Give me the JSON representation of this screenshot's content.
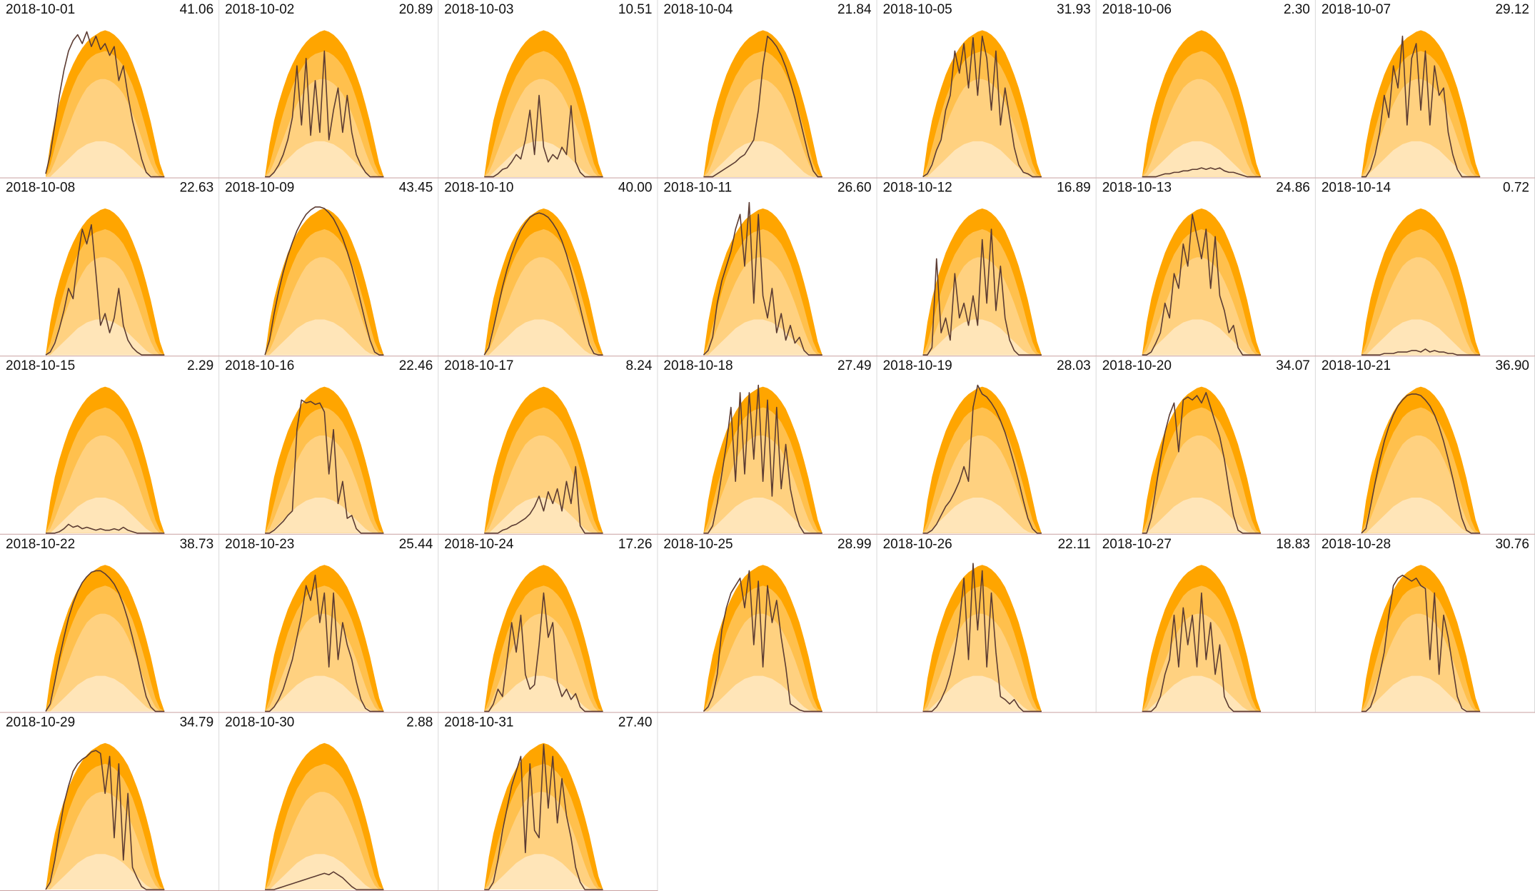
{
  "chart_data": {
    "type": "small-multiples",
    "x": [
      5,
      5.5,
      6,
      6.5,
      7,
      7.5,
      8,
      8.5,
      9,
      9.5,
      10,
      10.5,
      11,
      11.5,
      12,
      12.5,
      13,
      13.5,
      14,
      14.5,
      15,
      15.5,
      16,
      16.5,
      17,
      17.5,
      18
    ],
    "xlim": [
      0,
      24
    ],
    "ylim": [
      0,
      10.5
    ],
    "line_color": "#5b3b32",
    "bands": [
      {
        "color": "#ffa500",
        "values": [
          0,
          2.2,
          3.8,
          5.0,
          6.0,
          6.9,
          7.6,
          8.2,
          8.7,
          9.1,
          9.4,
          9.6,
          9.8,
          9.9,
          9.8,
          9.6,
          9.3,
          8.9,
          8.4,
          7.7,
          6.9,
          6.0,
          4.9,
          3.7,
          2.3,
          0.9,
          0
        ]
      },
      {
        "color": "#ffc04d",
        "values": [
          0,
          0.8,
          2.0,
          3.2,
          4.3,
          5.3,
          6.1,
          6.8,
          7.3,
          7.8,
          8.1,
          8.3,
          8.4,
          8.5,
          8.4,
          8.2,
          7.9,
          7.5,
          6.9,
          6.2,
          5.3,
          4.3,
          3.2,
          2.0,
          0.9,
          0.2,
          0
        ]
      },
      {
        "color": "#ffd180",
        "values": [
          0,
          0.3,
          1.0,
          1.8,
          2.6,
          3.4,
          4.2,
          4.9,
          5.5,
          6.0,
          6.3,
          6.5,
          6.6,
          6.6,
          6.5,
          6.3,
          6.0,
          5.6,
          5.0,
          4.3,
          3.5,
          2.6,
          1.7,
          0.9,
          0.3,
          0,
          0
        ]
      },
      {
        "color": "#ffe5b8",
        "values": [
          0,
          0,
          0.3,
          0.6,
          0.9,
          1.2,
          1.5,
          1.8,
          2.0,
          2.2,
          2.3,
          2.4,
          2.4,
          2.4,
          2.3,
          2.2,
          2.0,
          1.8,
          1.5,
          1.2,
          0.9,
          0.6,
          0.3,
          0.1,
          0,
          0,
          0
        ]
      }
    ],
    "panels": [
      {
        "title": "2018-10-01",
        "total": 41.06,
        "values": [
          0.2,
          1.5,
          3.5,
          5.5,
          7.2,
          8.5,
          9.2,
          9.6,
          9.0,
          9.8,
          8.8,
          9.5,
          8.6,
          9.0,
          8.2,
          8.8,
          6.5,
          7.5,
          5.5,
          3.8,
          2.5,
          1.2,
          0.3,
          0,
          0,
          0,
          0
        ]
      },
      {
        "title": "2018-10-02",
        "total": 20.89,
        "values": [
          0,
          0,
          0.3,
          0.8,
          1.5,
          2.5,
          4.0,
          7.5,
          3.5,
          8.0,
          2.8,
          6.5,
          3.0,
          8.5,
          2.5,
          4.5,
          6.0,
          3.0,
          5.5,
          3.0,
          1.5,
          0.8,
          0.3,
          0,
          0,
          0,
          0
        ]
      },
      {
        "title": "2018-10-03",
        "total": 10.51,
        "values": [
          0,
          0,
          0,
          0.2,
          0.5,
          0.6,
          1.0,
          1.5,
          1.2,
          2.5,
          4.5,
          1.5,
          5.5,
          2.0,
          1.0,
          1.5,
          1.2,
          2.0,
          1.5,
          4.8,
          1.0,
          0.3,
          0,
          0,
          0,
          0,
          0
        ]
      },
      {
        "title": "2018-10-04",
        "total": 21.84,
        "values": [
          0,
          0,
          0,
          0.2,
          0.4,
          0.6,
          0.8,
          1.0,
          1.3,
          1.5,
          2.0,
          2.5,
          4.5,
          7.5,
          9.5,
          9.2,
          8.8,
          8.2,
          7.4,
          6.4,
          5.3,
          4.0,
          2.7,
          1.4,
          0.4,
          0,
          0
        ]
      },
      {
        "title": "2018-10-05",
        "total": 31.93,
        "values": [
          0,
          0.2,
          0.8,
          1.8,
          2.5,
          4.5,
          5.5,
          8.5,
          7.0,
          9.0,
          6.0,
          9.4,
          5.5,
          9.5,
          8.0,
          4.5,
          8.5,
          3.5,
          6.0,
          4.0,
          2.0,
          0.8,
          0.3,
          0.2,
          0,
          0,
          0
        ]
      },
      {
        "title": "2018-10-06",
        "total": {
          "value": 2.3,
          "label": "2.30"
        },
        "values": [
          0,
          0,
          0,
          0,
          0.1,
          0.2,
          0.2,
          0.3,
          0.3,
          0.4,
          0.4,
          0.5,
          0.5,
          0.6,
          0.5,
          0.6,
          0.5,
          0.6,
          0.4,
          0.3,
          0.3,
          0.2,
          0.1,
          0,
          0,
          0,
          0
        ]
      },
      {
        "title": "2018-10-07",
        "total": 29.12,
        "values": [
          0,
          0,
          0.5,
          1.5,
          3.0,
          5.5,
          4.0,
          7.5,
          6.0,
          9.5,
          3.5,
          8.0,
          9.0,
          4.5,
          8.5,
          3.5,
          7.5,
          5.5,
          6.0,
          3.0,
          1.5,
          0.5,
          0,
          0,
          0,
          0,
          0
        ]
      },
      {
        "title": "2018-10-08",
        "total": 22.63,
        "values": [
          0,
          0.2,
          0.8,
          1.8,
          3.0,
          4.5,
          3.8,
          6.5,
          8.5,
          7.5,
          8.8,
          5.5,
          2.0,
          2.8,
          1.5,
          2.5,
          4.5,
          2.0,
          1.0,
          0.5,
          0.2,
          0,
          0,
          0,
          0,
          0,
          0
        ]
      },
      {
        "title": "2018-10-09",
        "total": 43.45,
        "values": [
          0,
          1.0,
          2.8,
          4.3,
          5.6,
          6.7,
          7.6,
          8.4,
          9.0,
          9.5,
          9.8,
          10.0,
          10.0,
          9.9,
          9.6,
          9.2,
          8.6,
          7.9,
          7.0,
          6.0,
          4.8,
          3.5,
          2.2,
          1.0,
          0.2,
          0,
          0
        ]
      },
      {
        "title": "2018-10-10",
        "total": {
          "value": 40,
          "label": "40.00"
        },
        "values": [
          0,
          0.5,
          1.8,
          3.2,
          4.6,
          5.8,
          6.8,
          7.7,
          8.4,
          8.9,
          9.3,
          9.5,
          9.6,
          9.5,
          9.3,
          8.9,
          8.4,
          7.7,
          6.8,
          5.7,
          4.5,
          3.2,
          1.9,
          0.7,
          0.1,
          0,
          0
        ]
      },
      {
        "title": "2018-10-11",
        "total": {
          "value": 26.6,
          "label": "26.60"
        },
        "values": [
          0,
          0.3,
          1.2,
          3.5,
          5.0,
          6.0,
          7.0,
          8.5,
          9.5,
          6.0,
          10.3,
          3.5,
          9.5,
          4.0,
          2.5,
          4.5,
          1.5,
          2.8,
          1.0,
          2.0,
          0.8,
          1.2,
          0.3,
          0,
          0,
          0,
          0
        ]
      },
      {
        "title": "2018-10-12",
        "total": 16.89,
        "values": [
          0,
          0,
          0.5,
          6.5,
          1.5,
          2.5,
          1.0,
          5.5,
          2.5,
          3.5,
          2.0,
          4.0,
          2.0,
          7.8,
          3.5,
          8.5,
          3.0,
          6.0,
          2.5,
          1.0,
          0.3,
          0,
          0,
          0,
          0,
          0,
          0
        ]
      },
      {
        "title": "2018-10-13",
        "total": 24.86,
        "values": [
          0,
          0,
          0.2,
          0.8,
          1.5,
          3.5,
          2.5,
          5.5,
          4.5,
          7.5,
          6.0,
          9.5,
          8.0,
          6.5,
          8.5,
          4.5,
          8.0,
          4.0,
          3.0,
          1.5,
          2.0,
          0.5,
          0,
          0,
          0,
          0,
          0
        ]
      },
      {
        "title": "2018-10-14",
        "total": 0.72,
        "values": [
          0,
          0,
          0,
          0,
          0,
          0.1,
          0.1,
          0.1,
          0.2,
          0.2,
          0.2,
          0.3,
          0.3,
          0.2,
          0.4,
          0.2,
          0.3,
          0.2,
          0.2,
          0.1,
          0.1,
          0,
          0,
          0,
          0,
          0,
          0
        ]
      },
      {
        "title": "2018-10-15",
        "total": 2.29,
        "values": [
          0,
          0,
          0,
          0.1,
          0.3,
          0.6,
          0.4,
          0.5,
          0.3,
          0.4,
          0.3,
          0.2,
          0.3,
          0.2,
          0.2,
          0.3,
          0.2,
          0.4,
          0.2,
          0.1,
          0,
          0,
          0,
          0,
          0,
          0,
          0
        ]
      },
      {
        "title": "2018-10-16",
        "total": 22.46,
        "values": [
          0,
          0,
          0.2,
          0.5,
          0.8,
          1.2,
          1.5,
          7.0,
          9.0,
          8.8,
          8.9,
          8.7,
          8.8,
          8.2,
          4.0,
          7.0,
          2.0,
          3.5,
          1.0,
          1.2,
          0.3,
          0,
          0,
          0,
          0,
          0,
          0
        ]
      },
      {
        "title": "2018-10-17",
        "total": 8.24,
        "values": [
          0,
          0,
          0,
          0,
          0.2,
          0.3,
          0.5,
          0.6,
          0.8,
          1.0,
          1.3,
          1.8,
          2.5,
          1.5,
          2.8,
          2.0,
          3.0,
          1.5,
          3.5,
          2.0,
          4.5,
          0.5,
          0,
          0,
          0,
          0,
          0
        ]
      },
      {
        "title": "2018-10-18",
        "total": 27.49,
        "values": [
          0,
          0,
          0.5,
          2.0,
          4.0,
          6.0,
          8.5,
          3.5,
          9.5,
          4.0,
          9.5,
          5.0,
          10.0,
          3.5,
          9.0,
          2.5,
          8.5,
          3.0,
          6.0,
          3.0,
          1.5,
          0.5,
          0,
          0,
          0,
          0,
          0
        ]
      },
      {
        "title": "2018-10-19",
        "total": 28.03,
        "values": [
          0,
          0,
          0.2,
          0.6,
          1.2,
          1.8,
          2.2,
          2.8,
          3.5,
          4.5,
          3.5,
          8.5,
          10.0,
          9.4,
          9.2,
          8.8,
          8.3,
          7.6,
          6.8,
          5.8,
          4.7,
          3.5,
          2.2,
          1.0,
          0.3,
          0,
          0
        ]
      },
      {
        "title": "2018-10-20",
        "total": 34.07,
        "values": [
          0,
          0,
          1.0,
          3.0,
          5.0,
          6.8,
          8.0,
          8.8,
          5.5,
          9.0,
          9.2,
          9.0,
          9.3,
          8.8,
          9.5,
          8.5,
          7.5,
          6.5,
          5.0,
          3.0,
          1.2,
          0.2,
          0,
          0,
          0,
          0,
          0
        ]
      },
      {
        "title": "2018-10-21",
        "total": {
          "value": 36.9,
          "label": "36.90"
        },
        "values": [
          0,
          0.3,
          1.8,
          3.4,
          4.9,
          6.2,
          7.2,
          8.0,
          8.6,
          9.0,
          9.3,
          9.4,
          9.4,
          9.3,
          9.0,
          8.6,
          8.0,
          7.2,
          6.2,
          5.0,
          3.7,
          2.3,
          1.0,
          0.2,
          0,
          0,
          0
        ]
      },
      {
        "title": "2018-10-22",
        "total": 38.73,
        "values": [
          0,
          0.5,
          2.0,
          3.6,
          5.0,
          6.3,
          7.3,
          8.1,
          8.7,
          9.1,
          9.4,
          9.5,
          9.5,
          9.3,
          9.0,
          8.6,
          8.0,
          7.2,
          6.2,
          5.0,
          3.7,
          2.3,
          1.0,
          0.3,
          0,
          0,
          0
        ]
      },
      {
        "title": "2018-10-23",
        "total": 25.44,
        "values": [
          0,
          0,
          0.3,
          0.8,
          1.5,
          2.5,
          3.5,
          5.0,
          6.5,
          8.5,
          7.5,
          9.2,
          6.0,
          8.0,
          3.0,
          8.0,
          3.5,
          6.0,
          4.5,
          3.5,
          2.0,
          0.8,
          0.2,
          0,
          0,
          0,
          0
        ]
      },
      {
        "title": "2018-10-24",
        "total": 17.26,
        "values": [
          0,
          0,
          0.5,
          1.5,
          1.0,
          3.5,
          6.0,
          4.0,
          6.5,
          2.5,
          1.5,
          1.8,
          4.5,
          8.0,
          5.0,
          6.0,
          2.0,
          1.0,
          1.5,
          0.8,
          1.2,
          0.3,
          0,
          0,
          0,
          0,
          0
        ]
      },
      {
        "title": "2018-10-25",
        "total": 28.99,
        "values": [
          0,
          0.3,
          1.0,
          2.5,
          5.5,
          7.0,
          8.0,
          8.5,
          9.0,
          7.0,
          9.5,
          4.5,
          8.8,
          3.0,
          8.5,
          6.0,
          7.5,
          5.0,
          3.0,
          0.5,
          0.3,
          0.1,
          0,
          0,
          0,
          0,
          0
        ]
      },
      {
        "title": "2018-10-26",
        "total": 22.11,
        "values": [
          0,
          0,
          0,
          0.3,
          0.8,
          1.5,
          2.5,
          4.0,
          6.0,
          9.0,
          3.5,
          10.0,
          5.5,
          9.5,
          3.0,
          8.0,
          4.0,
          1.0,
          0.8,
          0.5,
          0.8,
          0.3,
          0,
          0,
          0,
          0,
          0
        ]
      },
      {
        "title": "2018-10-27",
        "total": 18.83,
        "values": [
          0,
          0,
          0,
          0.3,
          1.0,
          2.5,
          3.5,
          6.5,
          3.0,
          7.0,
          4.5,
          6.5,
          3.0,
          8.0,
          3.5,
          6.0,
          2.5,
          4.5,
          1.0,
          0.3,
          0,
          0,
          0,
          0,
          0,
          0,
          0
        ]
      },
      {
        "title": "2018-10-28",
        "total": 30.76,
        "values": [
          0,
          0,
          0.3,
          1.2,
          2.5,
          4.0,
          6.5,
          8.5,
          9.0,
          9.2,
          9.0,
          8.8,
          9.0,
          8.5,
          8.3,
          3.5,
          8.0,
          2.5,
          6.5,
          5.0,
          3.0,
          1.0,
          0.2,
          0,
          0,
          0,
          0
        ]
      },
      {
        "title": "2018-10-29",
        "total": 34.79,
        "values": [
          0,
          0.5,
          2.0,
          4.0,
          5.8,
          7.0,
          8.0,
          8.5,
          8.8,
          9.0,
          9.3,
          9.4,
          9.2,
          6.5,
          9.0,
          3.5,
          8.5,
          2.0,
          6.5,
          1.5,
          0.8,
          0.2,
          0,
          0,
          0,
          0,
          0
        ]
      },
      {
        "title": "2018-10-30",
        "total": 2.88,
        "values": [
          0,
          0,
          0,
          0.1,
          0.2,
          0.3,
          0.4,
          0.5,
          0.6,
          0.7,
          0.8,
          0.9,
          1.0,
          1.1,
          1.0,
          1.2,
          1.0,
          0.8,
          0.5,
          0.2,
          0,
          0,
          0,
          0,
          0,
          0,
          0
        ]
      },
      {
        "title": "2018-10-31",
        "total": {
          "value": 27.4,
          "label": "27.40"
        },
        "values": [
          0,
          0,
          0.5,
          2.0,
          4.0,
          5.5,
          7.0,
          8.0,
          9.0,
          2.5,
          8.5,
          4.0,
          3.5,
          9.8,
          5.5,
          9.0,
          4.5,
          7.5,
          5.0,
          3.5,
          1.5,
          0.5,
          0,
          0,
          0,
          0,
          0
        ]
      }
    ]
  }
}
